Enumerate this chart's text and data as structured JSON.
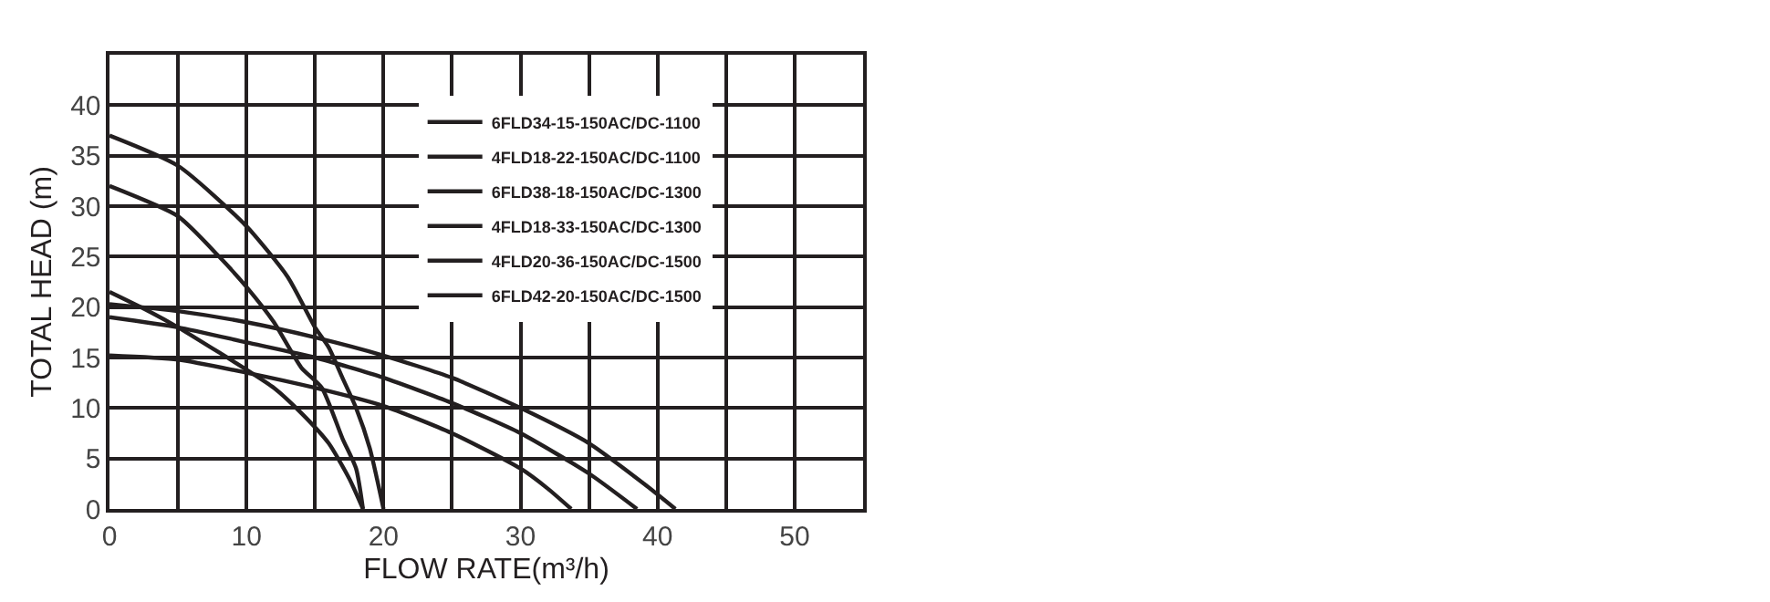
{
  "chart_data": {
    "type": "line",
    "xlabel": "FLOW RATE(m³/h)",
    "ylabel": "TOTAL HEAD (m)",
    "xlim": [
      0,
      55
    ],
    "ylim": [
      0,
      45
    ],
    "xticks": [
      0,
      {
        "value": 5,
        "label": null
      },
      10,
      {
        "value": 15,
        "label": null
      },
      20,
      {
        "value": 25,
        "label": null
      },
      30,
      {
        "value": 35,
        "label": null
      },
      40,
      {
        "value": 45,
        "label": null
      },
      50,
      {
        "value": 55,
        "label": null
      }
    ],
    "yticks": [
      0,
      5,
      10,
      15,
      20,
      25,
      30,
      35,
      40,
      {
        "value": 45,
        "label": null
      }
    ],
    "grid": true,
    "legend": "top",
    "marker": "none",
    "line_style": "solid",
    "series": [
      {
        "name": "6FLD34-15-150AC/DC-1100",
        "color": "#231f20",
        "x": [
          0,
          5,
          10,
          15,
          20,
          25,
          30,
          32,
          33.7
        ],
        "values": [
          15.2,
          14.8,
          13.5,
          12,
          10.2,
          7.5,
          4,
          2,
          0
        ]
      },
      {
        "name": "4FLD18-22-150AC/DC-1100",
        "color": "#231f20",
        "x": [
          0,
          3,
          5,
          8,
          10,
          12,
          14,
          16,
          17.5,
          18.5
        ],
        "values": [
          21.5,
          19.5,
          18,
          15.5,
          13.8,
          12,
          9.5,
          6.5,
          3,
          0
        ]
      },
      {
        "name": "6FLD38-18-150AC/DC-1300",
        "color": "#231f20",
        "x": [
          0,
          5,
          10,
          15,
          20,
          25,
          30,
          35,
          38.5
        ],
        "values": [
          19,
          18,
          16.5,
          15,
          13,
          10.5,
          7.5,
          3.5,
          0
        ]
      },
      {
        "name": "4FLD18-33-150AC/DC-1300",
        "color": "#231f20",
        "x": [
          0,
          5,
          8,
          10,
          12,
          14,
          15.5,
          17,
          18,
          18.5
        ],
        "values": [
          32,
          29,
          25,
          22,
          18.5,
          14,
          12,
          7,
          4,
          0
        ]
      },
      {
        "name": "4FLD20-36-150AC/DC-1500",
        "color": "#231f20",
        "x": [
          0,
          5,
          10,
          13,
          15,
          16,
          17,
          18,
          19,
          20
        ],
        "values": [
          37,
          34,
          28,
          23,
          18,
          16,
          13,
          10,
          6,
          0
        ]
      },
      {
        "name": "6FLD42-20-150AC/DC-1500",
        "color": "#231f20",
        "x": [
          0,
          5,
          10,
          15,
          20,
          25,
          30,
          35,
          39,
          41.3
        ],
        "values": [
          20.3,
          19.6,
          18.5,
          17,
          15.2,
          13,
          10,
          6.5,
          2.5,
          0
        ]
      }
    ]
  }
}
